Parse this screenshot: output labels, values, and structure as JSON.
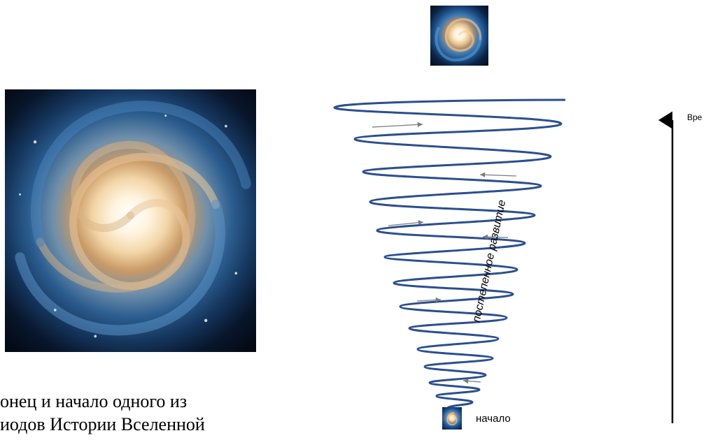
{
  "caption": {
    "line1": "онец и начало одного из",
    "line2": "иодов Истории Вселенной"
  },
  "diagram": {
    "label_start": "начало",
    "label_time": "Вре",
    "label_gradual": "постепенное развитие",
    "spiral_color": "#2b4f8f",
    "arrow_color": "#7a7a7a"
  },
  "images": [
    {
      "name": "galaxy-large",
      "depicts": "spiral galaxy"
    },
    {
      "name": "galaxy-small-top",
      "depicts": "spiral galaxy"
    },
    {
      "name": "galaxy-small-bottom",
      "depicts": "spiral galaxy"
    }
  ]
}
